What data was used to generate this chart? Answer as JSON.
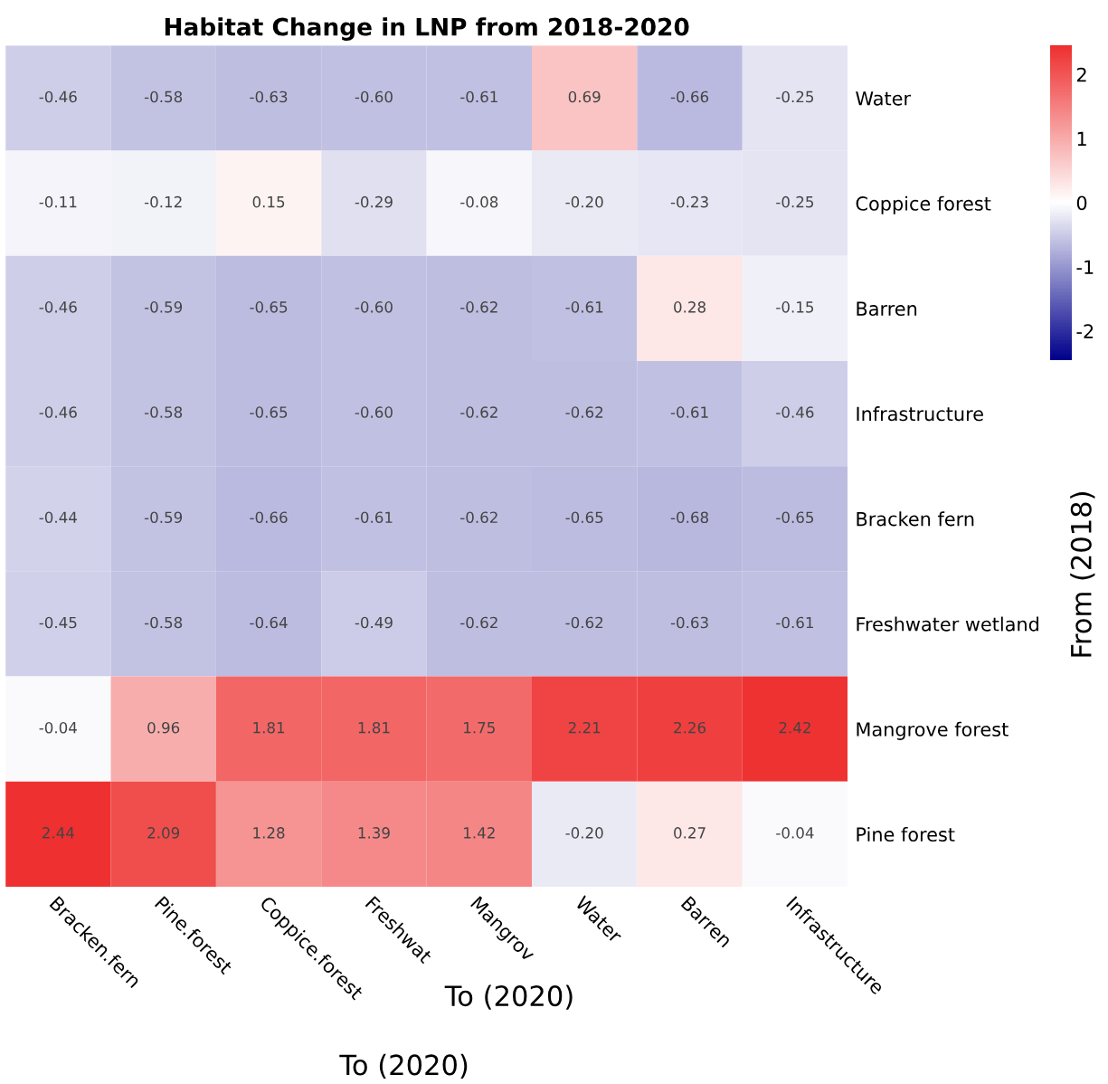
{
  "chart_data": {
    "type": "heatmap",
    "title": "Habitat Change in LNP from 2018-2020",
    "xlabel": "To (2020)",
    "ylabel": "From (2018)",
    "annotations": [
      "To (2020)"
    ],
    "categories": [
      "Bracken.fern",
      "Pine.forest",
      "Coppice.forest",
      "Freshwat",
      "Mangrov",
      "Water",
      "Barren",
      "Infrastructure"
    ],
    "y_categories": [
      "Water",
      "Coppice forest",
      "Barren",
      "Infrastructure",
      "Bracken fern",
      "Freshwater wetland",
      "Mangrove forest",
      "Pine forest"
    ],
    "cells": [
      [
        -0.46,
        -0.58,
        -0.63,
        -0.6,
        -0.61,
        0.69,
        -0.66,
        -0.25
      ],
      [
        -0.11,
        -0.12,
        0.15,
        -0.29,
        -0.08,
        -0.2,
        -0.23,
        -0.25
      ],
      [
        -0.46,
        -0.59,
        -0.65,
        -0.6,
        -0.62,
        -0.61,
        0.28,
        -0.15
      ],
      [
        -0.46,
        -0.58,
        -0.65,
        -0.6,
        -0.62,
        -0.62,
        -0.61,
        -0.46
      ],
      [
        -0.44,
        -0.59,
        -0.66,
        -0.61,
        -0.62,
        -0.65,
        -0.68,
        -0.65
      ],
      [
        -0.45,
        -0.58,
        -0.64,
        -0.49,
        -0.62,
        -0.62,
        -0.63,
        -0.61
      ],
      [
        -0.04,
        0.96,
        1.81,
        1.81,
        1.75,
        2.21,
        2.26,
        2.42
      ],
      [
        2.44,
        2.09,
        1.28,
        1.39,
        1.42,
        -0.2,
        0.27,
        -0.04
      ]
    ],
    "cell_labels": [
      [
        "-0.46",
        "-0.58",
        "-0.63",
        "-0.60",
        "-0.61",
        "0.69",
        "-0.66",
        "-0.25"
      ],
      [
        "-0.11",
        "-0.12",
        "0.15",
        "-0.29",
        "-0.08",
        "-0.20",
        "-0.23",
        "-0.25"
      ],
      [
        "-0.46",
        "-0.59",
        "-0.65",
        "-0.60",
        "-0.62",
        "-0.61",
        "0.28",
        "-0.15"
      ],
      [
        "-0.46",
        "-0.58",
        "-0.65",
        "-0.60",
        "-0.62",
        "-0.62",
        "-0.61",
        "-0.46"
      ],
      [
        "-0.44",
        "-0.59",
        "-0.66",
        "-0.61",
        "-0.62",
        "-0.65",
        "-0.68",
        "-0.65"
      ],
      [
        "-0.45",
        "-0.58",
        "-0.64",
        "-0.49",
        "-0.62",
        "-0.62",
        "-0.63",
        "-0.61"
      ],
      [
        "-0.04",
        "0.96",
        "1.81",
        "1.81",
        "1.75",
        "2.21",
        "2.26",
        "2.42"
      ],
      [
        "2.44",
        "2.09",
        "1.28",
        "1.39",
        "1.42",
        "-0.20",
        "0.27",
        "-0.04"
      ]
    ],
    "data_labels": true,
    "colors": [
      "#00008b",
      "#ffffff",
      "#ee3030"
    ],
    "clim": [
      -2.45,
      2.45
    ],
    "cticks": [
      -2,
      -1,
      0,
      1,
      2
    ],
    "grid": false,
    "legend": false
  }
}
